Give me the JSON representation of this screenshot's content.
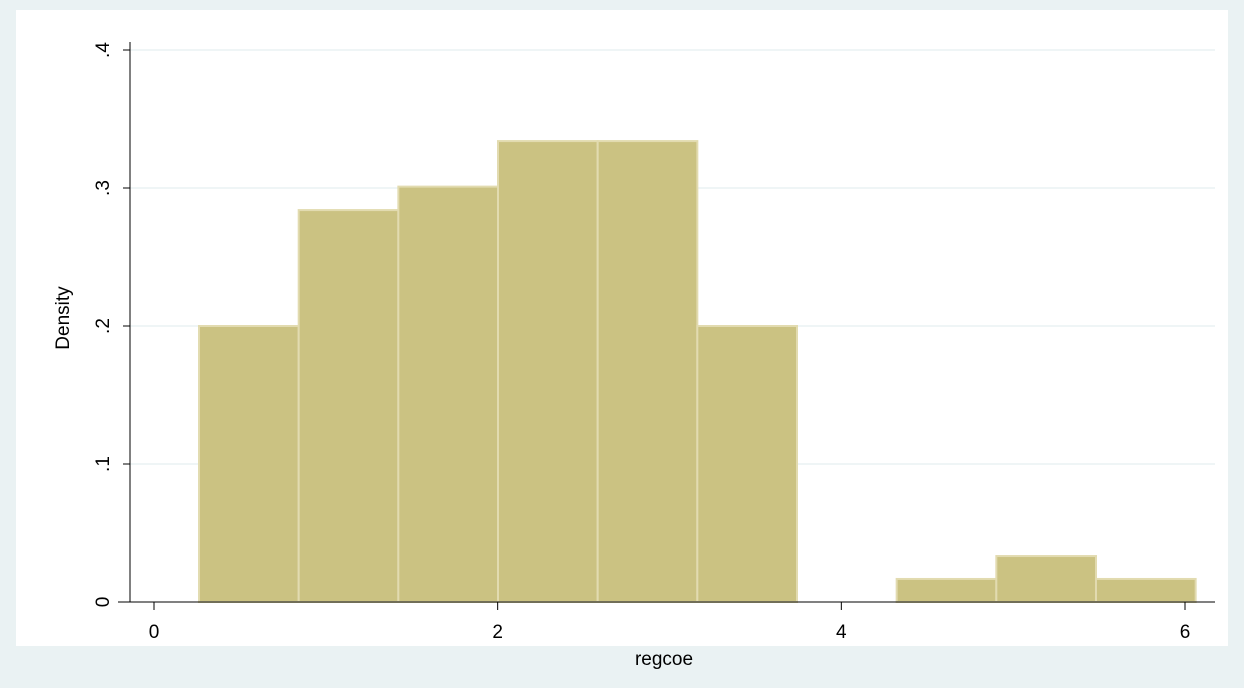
{
  "chart_data": {
    "type": "histogram",
    "x_label": "regcoe",
    "y_label": "Density",
    "bins": [
      0.262,
      0.842,
      1.422,
      2.002,
      2.582,
      3.162,
      3.742,
      4.322,
      4.902,
      5.482,
      6.062
    ],
    "values": [
      0.2,
      0.284,
      0.301,
      0.334,
      0.334,
      0.2,
      0,
      0.0167,
      0.0333,
      0.0167
    ],
    "color": "#cbc282",
    "xlim": [
      0,
      6
    ],
    "xticks": [
      0,
      2,
      4,
      6
    ],
    "ylim": [
      0,
      0.4
    ],
    "yticks": [
      0,
      {
        "value": 0.1,
        "label": ".1"
      },
      {
        "value": 0.2,
        "label": ".2"
      },
      {
        "value": 0.3,
        "label": ".3"
      },
      {
        "value": 0.4,
        "label": ".4"
      }
    ],
    "grid": true
  }
}
